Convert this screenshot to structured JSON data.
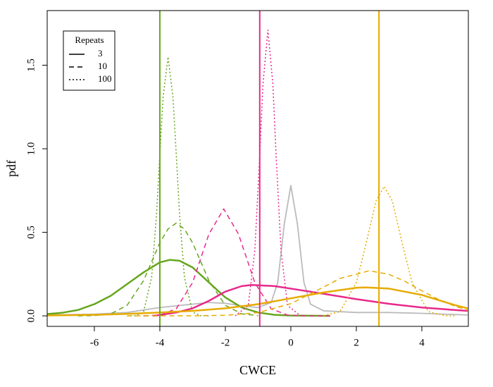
{
  "chart_data": {
    "type": "line",
    "xlabel": "CWCE",
    "ylabel": "pdf",
    "xlim": [
      -7.44,
      5.42
    ],
    "ylim": [
      -0.063,
      1.827
    ],
    "xticks": [
      -6,
      -4,
      -2,
      0,
      2,
      4
    ],
    "yticks": [
      {
        "value": 0,
        "label": "0.0"
      },
      {
        "value": 0.5,
        "label": "0.5"
      },
      {
        "value": 1,
        "label": "1.0"
      },
      {
        "value": 1.5,
        "label": "1.5"
      }
    ],
    "legend": {
      "title": "Repeats",
      "position": "upper-left",
      "entries": [
        {
          "label": "3",
          "dash": "solid"
        },
        {
          "label": "10",
          "dash": "dashed"
        },
        {
          "label": "100",
          "dash": "dotted"
        }
      ]
    },
    "series": [
      {
        "color": "#bbbbbb",
        "dash": "solid",
        "x": [
          -7.5,
          -6,
          -5,
          -4,
          -3.5,
          -3,
          -2.5,
          -2,
          -1.5,
          -1,
          -0.6,
          -0.4,
          -0.2,
          0,
          0.2,
          0.4,
          0.6,
          1,
          2,
          3,
          4,
          5.4
        ],
        "values": [
          0.005,
          0.01,
          0.02,
          0.05,
          0.06,
          0.07,
          0.08,
          0.075,
          0.06,
          0.05,
          0.08,
          0.2,
          0.55,
          0.78,
          0.55,
          0.2,
          0.07,
          0.03,
          0.02,
          0.02,
          0.015,
          0.005
        ]
      },
      {
        "color": "#66a61e",
        "dash": "solid",
        "x": [
          -7.5,
          -7,
          -6.5,
          -6,
          -5.5,
          -5,
          -4.5,
          -4,
          -3.7,
          -3.4,
          -3,
          -2.5,
          -2,
          -1.5,
          -1,
          -0.5,
          0,
          1.2
        ],
        "values": [
          0.01,
          0.018,
          0.035,
          0.07,
          0.12,
          0.19,
          0.26,
          0.32,
          0.335,
          0.33,
          0.29,
          0.2,
          0.11,
          0.05,
          0.02,
          0.006,
          0.002,
          0
        ]
      },
      {
        "color": "#66a61e",
        "dash": "dashed",
        "x": [
          -6.5,
          -6,
          -5.5,
          -5,
          -4.5,
          -4,
          -3.75,
          -3.5,
          -3.25,
          -3,
          -2.5,
          -2,
          -1.5,
          -1
        ],
        "values": [
          0,
          0.0014,
          0.012,
          0.063,
          0.21,
          0.437,
          0.52,
          0.555,
          0.52,
          0.437,
          0.21,
          0.063,
          0.012,
          0.0014
        ]
      },
      {
        "color": "#66a61e",
        "dash": "dotted",
        "x": [
          -5,
          -4.75,
          -4.5,
          -4.25,
          -4.1,
          -4,
          -3.9,
          -3.75,
          -3.6,
          -3.5,
          -3.4,
          -3.25,
          -3,
          -2.75,
          -2.5
        ],
        "values": [
          0,
          0.001,
          0.022,
          0.232,
          0.61,
          0.97,
          1.31,
          1.55,
          1.31,
          0.97,
          0.61,
          0.232,
          0.022,
          0.001,
          0
        ]
      },
      {
        "color": "#e7298a",
        "dash": "solid",
        "x": [
          -4.2,
          -4,
          -3.5,
          -3,
          -2.5,
          -2,
          -1.5,
          -1.2,
          -0.5,
          0,
          1,
          2,
          3,
          4,
          5,
          5.4
        ],
        "values": [
          0,
          0.005,
          0.02,
          0.045,
          0.09,
          0.145,
          0.178,
          0.185,
          0.178,
          0.163,
          0.132,
          0.1,
          0.072,
          0.05,
          0.035,
          0.03
        ]
      },
      {
        "color": "#e7298a",
        "dash": "dashed",
        "x": [
          -4.5,
          -4,
          -3.5,
          -3,
          -2.5,
          -2.05,
          -1.6,
          -1.1,
          -0.6,
          -0.1,
          0.5,
          1.2
        ],
        "values": [
          0,
          0.0045,
          0.042,
          0.199,
          0.49,
          0.64,
          0.49,
          0.199,
          0.042,
          0.0045,
          0,
          0
        ]
      },
      {
        "color": "#e7298a",
        "dash": "dotted",
        "x": [
          -1.7,
          -1.3,
          -1.1,
          -0.95,
          -0.85,
          -0.7,
          -0.55,
          -0.45,
          -0.3,
          -0.1,
          0.3
        ],
        "values": [
          0,
          0.062,
          0.39,
          0.96,
          1.39,
          1.71,
          1.39,
          0.96,
          0.39,
          0.062,
          0
        ]
      },
      {
        "color": "#e6ab02",
        "dash": "solid",
        "x": [
          -7.5,
          -6,
          -5,
          -4,
          -3,
          -2,
          -1,
          0,
          1,
          2,
          2.3,
          3,
          4,
          5,
          5.4
        ],
        "values": [
          0.002,
          0.006,
          0.012,
          0.02,
          0.03,
          0.045,
          0.07,
          0.105,
          0.14,
          0.168,
          0.17,
          0.163,
          0.125,
          0.065,
          0.045
        ]
      },
      {
        "color": "#e6ab02",
        "dash": "dashed",
        "x": [
          -5,
          -3,
          -2,
          -1,
          0,
          1,
          1.5,
          2.4,
          3,
          3.5,
          4,
          4.5,
          5,
          5.4
        ],
        "values": [
          0,
          0.0003,
          0.0032,
          0.019,
          0.073,
          0.172,
          0.224,
          0.27,
          0.248,
          0.205,
          0.15,
          0.099,
          0.058,
          0.034
        ]
      },
      {
        "color": "#e6ab02",
        "dash": "dotted",
        "x": [
          1,
          1.5,
          2,
          2.3,
          2.6,
          2.85,
          3.1,
          3.4,
          3.7,
          4.2,
          4.7,
          5
        ],
        "values": [
          0.0012,
          0.025,
          0.199,
          0.435,
          0.687,
          0.775,
          0.687,
          0.435,
          0.199,
          0.025,
          0.0012,
          0
        ]
      }
    ],
    "vlines": [
      {
        "x": -4.0,
        "color": "#66a61e"
      },
      {
        "x": -0.95,
        "color": "#e7298a"
      },
      {
        "x": 2.69,
        "color": "#e6ab02"
      }
    ]
  }
}
